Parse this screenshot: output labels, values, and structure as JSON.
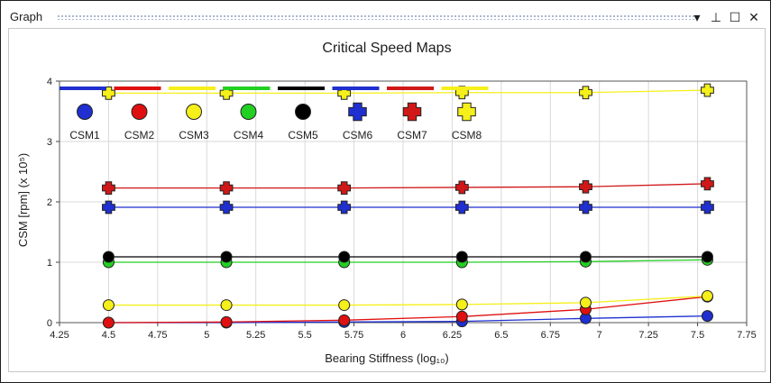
{
  "window": {
    "title": "Graph",
    "controls": [
      {
        "name": "dropdown-icon",
        "glyph": "▾"
      },
      {
        "name": "pin-icon",
        "glyph": "⊥"
      },
      {
        "name": "maximize-icon",
        "glyph": "☐"
      },
      {
        "name": "close-icon",
        "glyph": "✕"
      }
    ]
  },
  "chart_data": {
    "type": "line",
    "title": "Critical Speed Maps",
    "xlabel": "Bearing Stiffness (log₁₀)",
    "ylabel": "CSM [rpm] (x 10⁵)",
    "xlim": [
      4.25,
      7.75
    ],
    "ylim": [
      0,
      4
    ],
    "xticks": [
      "4.25",
      "4.5",
      "4.75",
      "5",
      "5.25",
      "5.5",
      "5.75",
      "6",
      "6.25",
      "6.5",
      "6.75",
      "7",
      "7.25",
      "7.5",
      "7.75"
    ],
    "yticks": [
      "0",
      "1",
      "2",
      "3",
      "4"
    ],
    "grid": true,
    "legend_placement": "top-left",
    "x": [
      4.5,
      5.1,
      5.7,
      6.3,
      6.93,
      7.55
    ],
    "series": [
      {
        "name": "CSM1",
        "color": "#1f2fd0",
        "marker": "circle",
        "values": [
          0.0,
          0.0,
          0.01,
          0.02,
          0.07,
          0.11
        ]
      },
      {
        "name": "CSM2",
        "color": "#e01010",
        "marker": "circle",
        "values": [
          0.0,
          0.01,
          0.04,
          0.1,
          0.22,
          0.43
        ]
      },
      {
        "name": "CSM3",
        "color": "#f5ef1a",
        "marker": "circle",
        "values": [
          0.29,
          0.29,
          0.29,
          0.3,
          0.33,
          0.44
        ]
      },
      {
        "name": "CSM4",
        "color": "#22d022",
        "marker": "circle",
        "values": [
          1.0,
          1.0,
          1.0,
          1.0,
          1.01,
          1.04
        ]
      },
      {
        "name": "CSM5",
        "color": "#000000",
        "marker": "circle",
        "values": [
          1.09,
          1.09,
          1.09,
          1.09,
          1.09,
          1.09
        ]
      },
      {
        "name": "CSM6",
        "color": "#1f2fd0",
        "marker": "plus",
        "values": [
          1.91,
          1.91,
          1.91,
          1.91,
          1.91,
          1.91
        ]
      },
      {
        "name": "CSM7",
        "color": "#d01818",
        "marker": "plus",
        "values": [
          2.23,
          2.23,
          2.23,
          2.24,
          2.25,
          2.3
        ]
      },
      {
        "name": "CSM8",
        "color": "#f5ef1a",
        "marker": "plus",
        "values": [
          3.8,
          3.8,
          3.8,
          3.81,
          3.81,
          3.85
        ]
      }
    ]
  }
}
